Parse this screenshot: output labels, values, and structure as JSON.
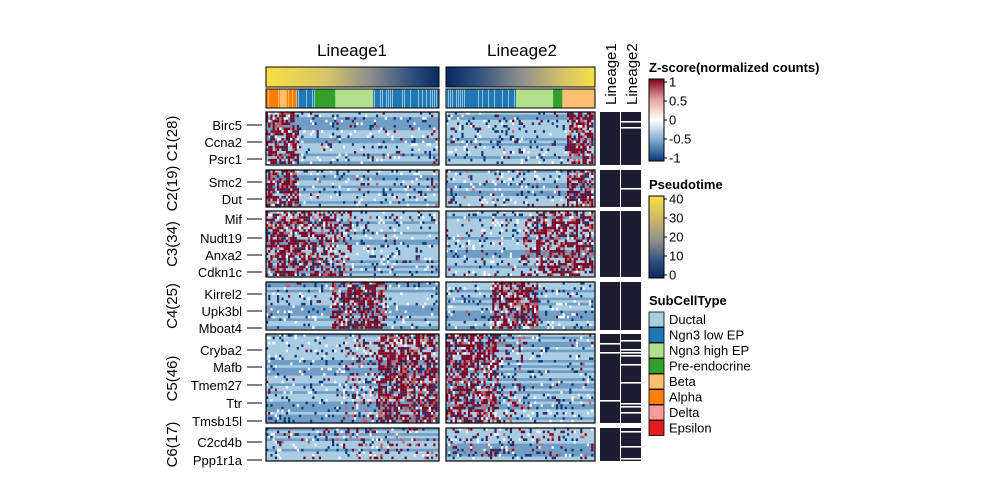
{
  "chart_data": {
    "type": "heatmap",
    "lineage_titles": [
      "Lineage1",
      "Lineage2"
    ],
    "side_columns": [
      "Lineage1",
      "Lineage2"
    ],
    "clusters": [
      {
        "label": "C1(28)",
        "genes": [
          "Birc5",
          "Ccna2",
          "Psrc1"
        ],
        "pattern": "late"
      },
      {
        "label": "C2(19)",
        "genes": [
          "Smc2",
          "Dut"
        ],
        "pattern": "late"
      },
      {
        "label": "C3(34)",
        "genes": [
          "Mif",
          "Nudt19",
          "Anxa2",
          "Cdkn1c"
        ],
        "pattern": "mid_late"
      },
      {
        "label": "C4(25)",
        "genes": [
          "Kirrel2",
          "Upk3bl",
          "Mboat4"
        ],
        "pattern": "mid"
      },
      {
        "label": "C5(46)",
        "genes": [
          "Cryba2",
          "Mafb",
          "Tmem27",
          "Ttr",
          "Tmsb15l"
        ],
        "pattern": "early"
      },
      {
        "label": "C6(17)",
        "genes": [
          "C2cd4b",
          "Ppp1r1a"
        ],
        "pattern": "sparse"
      }
    ],
    "zscore_legend": {
      "title": "Z-score(normalized counts)",
      "ticks": [
        "1",
        "0.5",
        "0",
        "-0.5",
        "-1"
      ],
      "range": [
        -1,
        1
      ]
    },
    "pseudotime_legend": {
      "title": "Pseudotime",
      "ticks": [
        "40",
        "30",
        "20",
        "10",
        "0"
      ],
      "range": [
        0,
        40
      ]
    },
    "subcelltype_legend": {
      "title": "SubCellType",
      "items": [
        {
          "name": "Ductal",
          "color": "#a6cee3"
        },
        {
          "name": "Ngn3 low EP",
          "color": "#1f78b4"
        },
        {
          "name": "Ngn3 high EP",
          "color": "#b2df8a"
        },
        {
          "name": "Pre-endocrine",
          "color": "#33a02c"
        },
        {
          "name": "Beta",
          "color": "#fdbf6f"
        },
        {
          "name": "Alpha",
          "color": "#ff7f00"
        },
        {
          "name": "Delta",
          "color": "#fb9a99"
        },
        {
          "name": "Epsilon",
          "color": "#e31a1c"
        }
      ]
    },
    "lineage1_celltype_segments": [
      {
        "type": "Alpha",
        "start": 0.0,
        "end": 0.18
      },
      {
        "type": "Beta",
        "start": 0.08,
        "end": 0.12
      },
      {
        "type": "Pre-endocrine",
        "start": 0.28,
        "end": 0.4
      },
      {
        "type": "Ngn3 high EP",
        "start": 0.4,
        "end": 0.62
      },
      {
        "type": "Ngn3 low EP",
        "start": 0.62,
        "end": 1.0
      }
    ],
    "lineage2_celltype_segments": [
      {
        "type": "Ngn3 low EP",
        "start": 0.0,
        "end": 0.47
      },
      {
        "type": "Ngn3 high EP",
        "start": 0.47,
        "end": 0.72
      },
      {
        "type": "Pre-endocrine",
        "start": 0.72,
        "end": 0.78
      },
      {
        "type": "Beta",
        "start": 0.78,
        "end": 1.0
      }
    ],
    "colors": {
      "high": "#7f0020",
      "mid": "#ffffff",
      "low": "#0a3a75",
      "cell": "#a9cce3",
      "panel_dark": "#1c1d33"
    }
  }
}
